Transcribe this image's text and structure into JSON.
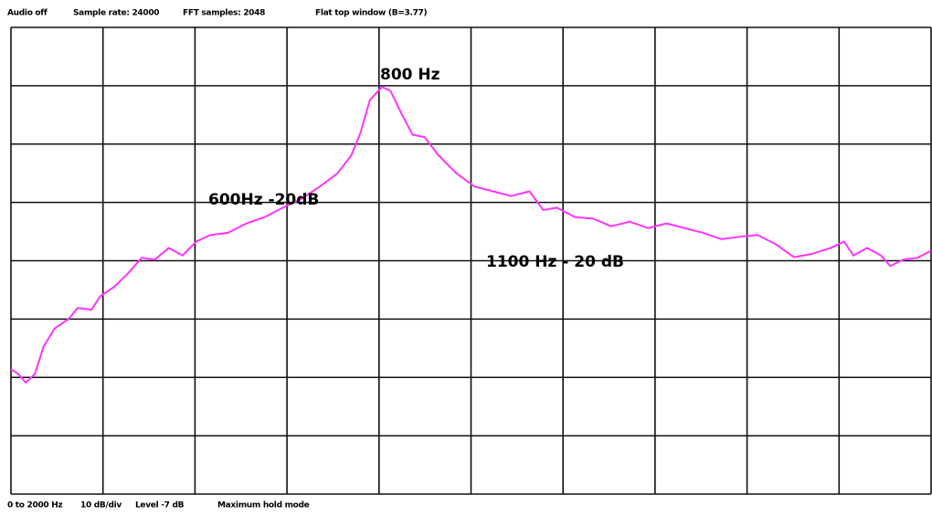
{
  "status": [
    "Audio off",
    "Sample rate: 24000",
    "FFT samples: 2048",
    "Flat top window (B=3.77)"
  ],
  "footer": [
    "0 to 2000 Hz",
    "10 dB/div",
    "Level -7 dB",
    "Maximum hold mode"
  ],
  "chart_data": {
    "type": "line",
    "annotations": [
      "800 Hz",
      "600Hz -20dB",
      "1100 Hz - 20 dB"
    ],
    "xlim": [
      0,
      2000
    ],
    "ylim": [
      -87,
      -7
    ],
    "xticks": [
      0,
      200,
      400,
      600,
      800,
      1000,
      1200,
      1400,
      1600,
      1800,
      2000
    ],
    "yticks": [
      -87,
      -77,
      -67,
      -57,
      -47,
      -37,
      -27,
      -17,
      -7
    ],
    "grid": true,
    "series": [
      {
        "color": "#ff33ff",
        "x": [
          0,
          16,
          32,
          52,
          71,
          95,
          125,
          145,
          175,
          194,
          224,
          254,
          284,
          313,
          343,
          373,
          403,
          433,
          472,
          512,
          552,
          591,
          631,
          671,
          710,
          740,
          760,
          780,
          806,
          825,
          849,
          873,
          899,
          929,
          968,
          1008,
          1048,
          1087,
          1127,
          1157,
          1186,
          1226,
          1266,
          1305,
          1345,
          1385,
          1425,
          1464,
          1504,
          1544,
          1583,
          1623,
          1663,
          1702,
          1742,
          1782,
          1811,
          1831,
          1861,
          1891,
          1911,
          1940,
          1970,
          2000
        ],
        "values": [
          -65.6,
          -66.4,
          -67.9,
          -66.4,
          -61.7,
          -58.6,
          -57.0,
          -55.1,
          -55.4,
          -53.1,
          -51.5,
          -49.2,
          -46.5,
          -46.8,
          -44.8,
          -46.1,
          -43.7,
          -42.6,
          -42.2,
          -40.6,
          -39.5,
          -37.9,
          -36.4,
          -34.3,
          -32.0,
          -28.9,
          -25.0,
          -19.5,
          -17.2,
          -17.9,
          -21.8,
          -25.4,
          -25.8,
          -28.9,
          -32.0,
          -34.3,
          -35.1,
          -35.9,
          -35.1,
          -38.3,
          -37.9,
          -39.5,
          -39.8,
          -41.1,
          -40.3,
          -41.4,
          -40.6,
          -41.4,
          -42.2,
          -43.3,
          -42.9,
          -42.6,
          -44.2,
          -46.4,
          -45.8,
          -44.8,
          -43.7,
          -46.1,
          -44.8,
          -46.1,
          -47.9,
          -46.8,
          -46.5,
          -45.3
        ]
      }
    ]
  }
}
